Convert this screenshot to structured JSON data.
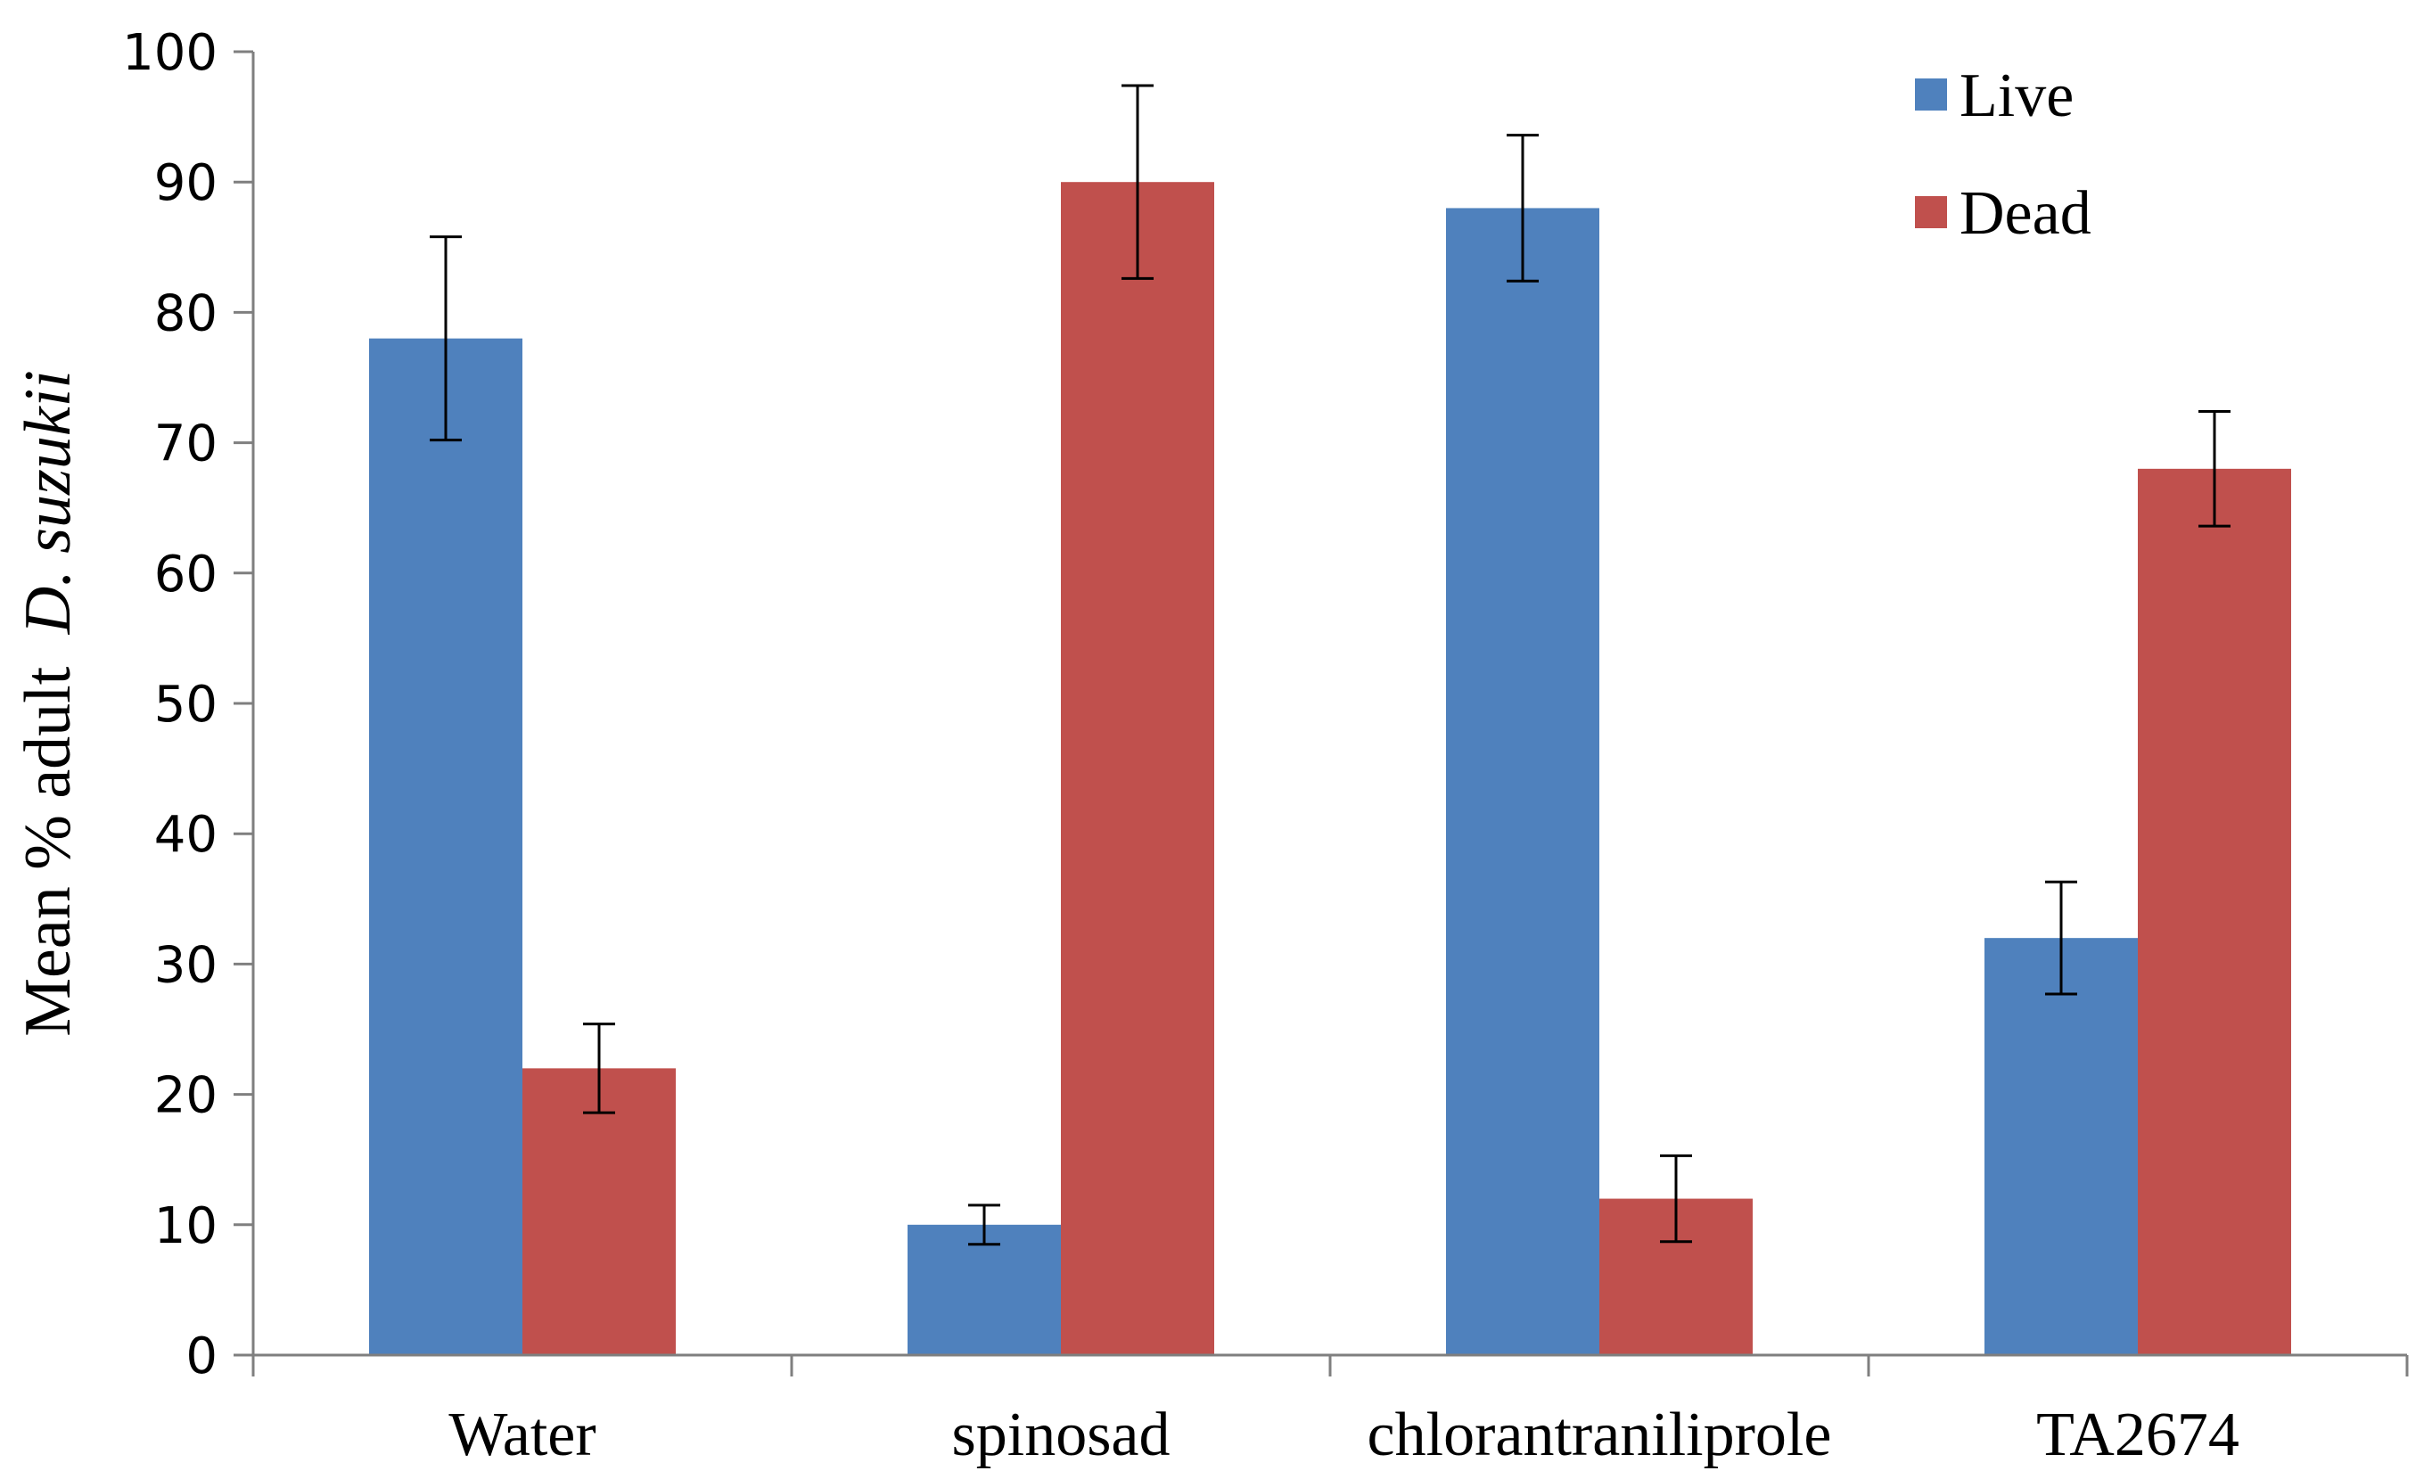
{
  "chart_data": {
    "type": "bar",
    "title": "",
    "xlabel": "",
    "ylabel": "Mean % adult",
    "ylabel_italic": "D. suzukii",
    "ylim": [
      0,
      100
    ],
    "yticks": [
      0,
      10,
      20,
      30,
      40,
      50,
      60,
      70,
      80,
      90,
      100
    ],
    "categories": [
      "Water",
      "spinosad",
      "chlorantraniliprole",
      "TA2674"
    ],
    "series": [
      {
        "name": "Live",
        "color": "#4f81bd",
        "values": [
          78,
          10,
          88,
          32
        ],
        "errors": [
          7.8,
          1.5,
          5.6,
          4.3
        ]
      },
      {
        "name": "Dead",
        "color": "#c0504d",
        "values": [
          22,
          90,
          12,
          68
        ],
        "errors": [
          3.4,
          7.4,
          3.3,
          4.4
        ]
      }
    ],
    "legend": {
      "position": "top-right"
    },
    "grid": false
  }
}
